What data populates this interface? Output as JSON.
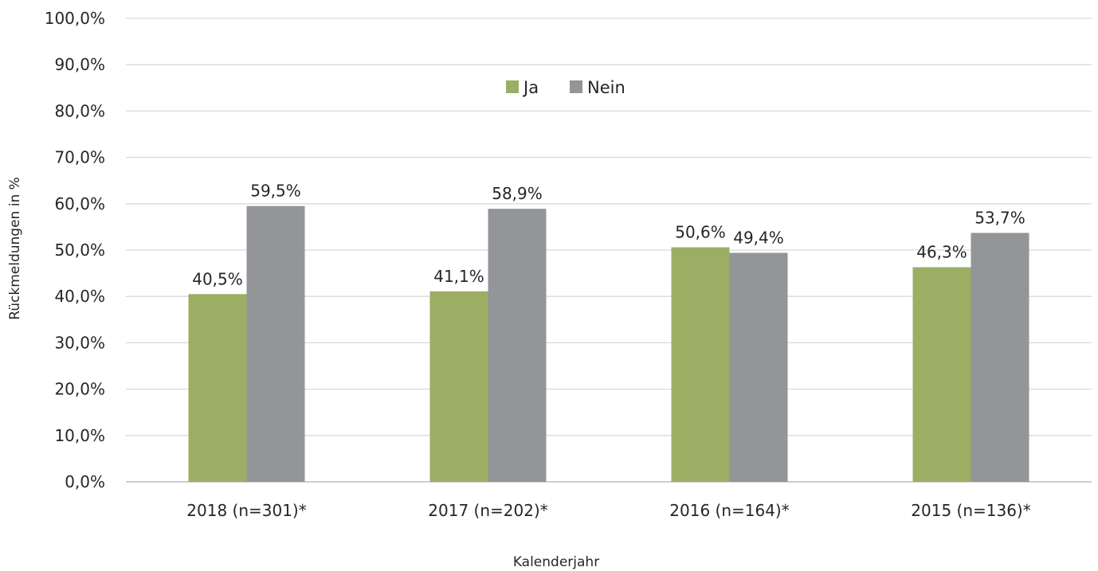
{
  "chart_data": {
    "type": "bar",
    "categories": [
      "2018 (n=301)*",
      "2017 (n=202)*",
      "2016 (n=164)*",
      "2015 (n=136)*"
    ],
    "series": [
      {
        "name": "Ja",
        "values": [
          40.5,
          41.1,
          50.6,
          46.3
        ],
        "labels": [
          "40,5%",
          "41,1%",
          "50,6%",
          "46,3%"
        ],
        "color": "#9bae64"
      },
      {
        "name": "Nein",
        "values": [
          59.5,
          58.9,
          49.4,
          53.7
        ],
        "labels": [
          "59,5%",
          "58,9%",
          "49,4%",
          "53,7%"
        ],
        "color": "#939598"
      }
    ],
    "xlabel": "Kalenderjahr",
    "ylabel": "Rückmeldungen in %",
    "ylim": [
      0,
      100
    ],
    "yticks": [
      "0,0%",
      "10,0%",
      "20,0%",
      "30,0%",
      "40,0%",
      "50,0%",
      "60,0%",
      "70,0%",
      "80,0%",
      "90,0%",
      "100,0%"
    ],
    "grid": true,
    "legend": "top-center"
  }
}
